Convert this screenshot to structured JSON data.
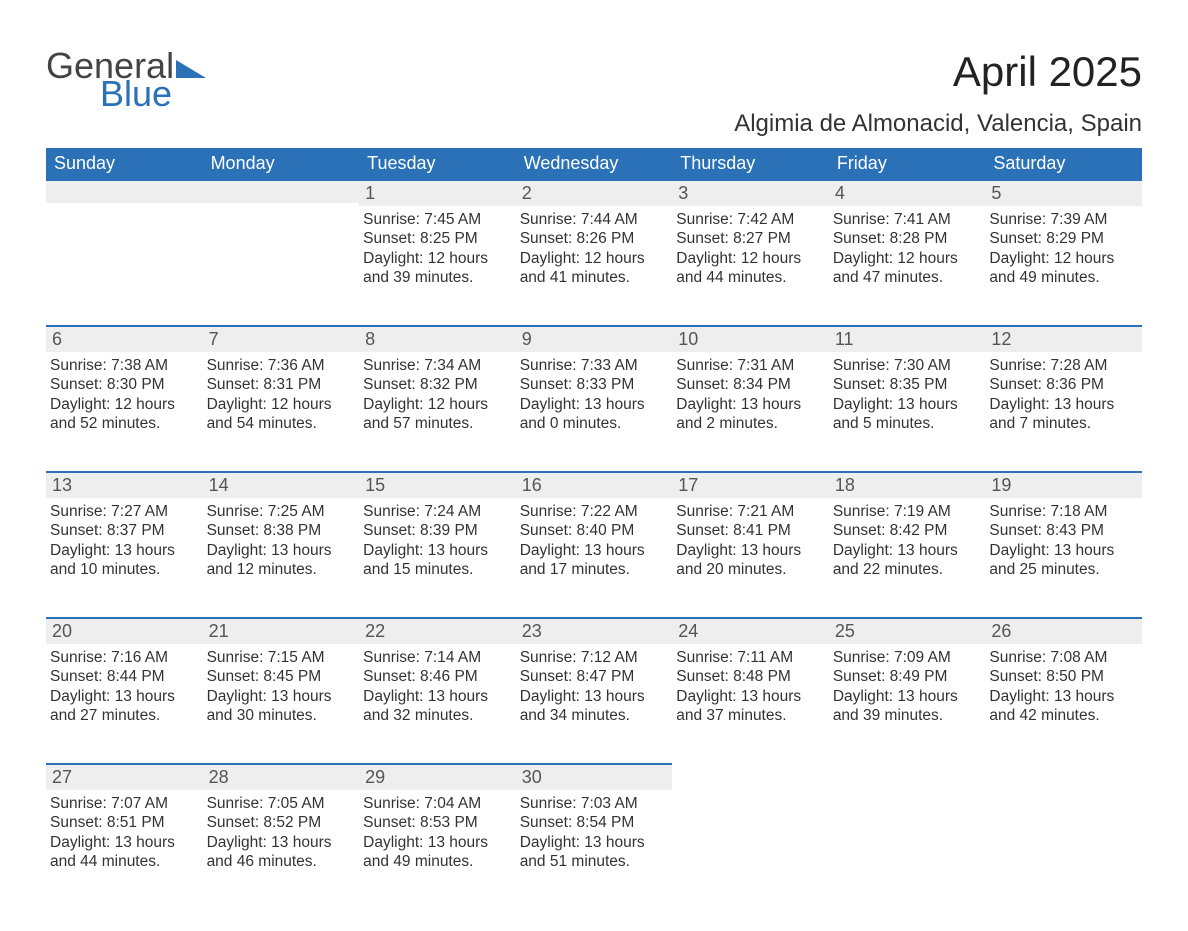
{
  "logo": {
    "line1": "General",
    "line2": "Blue",
    "tri_color": "#2a71b8"
  },
  "header": {
    "title": "April 2025",
    "location": "Algimia de Almonacid, Valencia, Spain"
  },
  "colors": {
    "header_bg": "#2a71b8",
    "header_text": "#ffffff",
    "daynum_bg": "#eeeeee",
    "daynum_border": "#2a71b8",
    "body_text": "#333333",
    "page_bg": "#ffffff"
  },
  "typography": {
    "title_fontsize": 42,
    "location_fontsize": 24,
    "weekday_fontsize": 18,
    "daynum_fontsize": 18,
    "cell_fontsize": 15.5,
    "logo_fontsize": 36
  },
  "weekdays": [
    "Sunday",
    "Monday",
    "Tuesday",
    "Wednesday",
    "Thursday",
    "Friday",
    "Saturday"
  ],
  "weeks": [
    [
      null,
      null,
      {
        "day": "1",
        "sunrise": "Sunrise: 7:45 AM",
        "sunset": "Sunset: 8:25 PM",
        "daylight1": "Daylight: 12 hours",
        "daylight2": "and 39 minutes."
      },
      {
        "day": "2",
        "sunrise": "Sunrise: 7:44 AM",
        "sunset": "Sunset: 8:26 PM",
        "daylight1": "Daylight: 12 hours",
        "daylight2": "and 41 minutes."
      },
      {
        "day": "3",
        "sunrise": "Sunrise: 7:42 AM",
        "sunset": "Sunset: 8:27 PM",
        "daylight1": "Daylight: 12 hours",
        "daylight2": "and 44 minutes."
      },
      {
        "day": "4",
        "sunrise": "Sunrise: 7:41 AM",
        "sunset": "Sunset: 8:28 PM",
        "daylight1": "Daylight: 12 hours",
        "daylight2": "and 47 minutes."
      },
      {
        "day": "5",
        "sunrise": "Sunrise: 7:39 AM",
        "sunset": "Sunset: 8:29 PM",
        "daylight1": "Daylight: 12 hours",
        "daylight2": "and 49 minutes."
      }
    ],
    [
      {
        "day": "6",
        "sunrise": "Sunrise: 7:38 AM",
        "sunset": "Sunset: 8:30 PM",
        "daylight1": "Daylight: 12 hours",
        "daylight2": "and 52 minutes."
      },
      {
        "day": "7",
        "sunrise": "Sunrise: 7:36 AM",
        "sunset": "Sunset: 8:31 PM",
        "daylight1": "Daylight: 12 hours",
        "daylight2": "and 54 minutes."
      },
      {
        "day": "8",
        "sunrise": "Sunrise: 7:34 AM",
        "sunset": "Sunset: 8:32 PM",
        "daylight1": "Daylight: 12 hours",
        "daylight2": "and 57 minutes."
      },
      {
        "day": "9",
        "sunrise": "Sunrise: 7:33 AM",
        "sunset": "Sunset: 8:33 PM",
        "daylight1": "Daylight: 13 hours",
        "daylight2": "and 0 minutes."
      },
      {
        "day": "10",
        "sunrise": "Sunrise: 7:31 AM",
        "sunset": "Sunset: 8:34 PM",
        "daylight1": "Daylight: 13 hours",
        "daylight2": "and 2 minutes."
      },
      {
        "day": "11",
        "sunrise": "Sunrise: 7:30 AM",
        "sunset": "Sunset: 8:35 PM",
        "daylight1": "Daylight: 13 hours",
        "daylight2": "and 5 minutes."
      },
      {
        "day": "12",
        "sunrise": "Sunrise: 7:28 AM",
        "sunset": "Sunset: 8:36 PM",
        "daylight1": "Daylight: 13 hours",
        "daylight2": "and 7 minutes."
      }
    ],
    [
      {
        "day": "13",
        "sunrise": "Sunrise: 7:27 AM",
        "sunset": "Sunset: 8:37 PM",
        "daylight1": "Daylight: 13 hours",
        "daylight2": "and 10 minutes."
      },
      {
        "day": "14",
        "sunrise": "Sunrise: 7:25 AM",
        "sunset": "Sunset: 8:38 PM",
        "daylight1": "Daylight: 13 hours",
        "daylight2": "and 12 minutes."
      },
      {
        "day": "15",
        "sunrise": "Sunrise: 7:24 AM",
        "sunset": "Sunset: 8:39 PM",
        "daylight1": "Daylight: 13 hours",
        "daylight2": "and 15 minutes."
      },
      {
        "day": "16",
        "sunrise": "Sunrise: 7:22 AM",
        "sunset": "Sunset: 8:40 PM",
        "daylight1": "Daylight: 13 hours",
        "daylight2": "and 17 minutes."
      },
      {
        "day": "17",
        "sunrise": "Sunrise: 7:21 AM",
        "sunset": "Sunset: 8:41 PM",
        "daylight1": "Daylight: 13 hours",
        "daylight2": "and 20 minutes."
      },
      {
        "day": "18",
        "sunrise": "Sunrise: 7:19 AM",
        "sunset": "Sunset: 8:42 PM",
        "daylight1": "Daylight: 13 hours",
        "daylight2": "and 22 minutes."
      },
      {
        "day": "19",
        "sunrise": "Sunrise: 7:18 AM",
        "sunset": "Sunset: 8:43 PM",
        "daylight1": "Daylight: 13 hours",
        "daylight2": "and 25 minutes."
      }
    ],
    [
      {
        "day": "20",
        "sunrise": "Sunrise: 7:16 AM",
        "sunset": "Sunset: 8:44 PM",
        "daylight1": "Daylight: 13 hours",
        "daylight2": "and 27 minutes."
      },
      {
        "day": "21",
        "sunrise": "Sunrise: 7:15 AM",
        "sunset": "Sunset: 8:45 PM",
        "daylight1": "Daylight: 13 hours",
        "daylight2": "and 30 minutes."
      },
      {
        "day": "22",
        "sunrise": "Sunrise: 7:14 AM",
        "sunset": "Sunset: 8:46 PM",
        "daylight1": "Daylight: 13 hours",
        "daylight2": "and 32 minutes."
      },
      {
        "day": "23",
        "sunrise": "Sunrise: 7:12 AM",
        "sunset": "Sunset: 8:47 PM",
        "daylight1": "Daylight: 13 hours",
        "daylight2": "and 34 minutes."
      },
      {
        "day": "24",
        "sunrise": "Sunrise: 7:11 AM",
        "sunset": "Sunset: 8:48 PM",
        "daylight1": "Daylight: 13 hours",
        "daylight2": "and 37 minutes."
      },
      {
        "day": "25",
        "sunrise": "Sunrise: 7:09 AM",
        "sunset": "Sunset: 8:49 PM",
        "daylight1": "Daylight: 13 hours",
        "daylight2": "and 39 minutes."
      },
      {
        "day": "26",
        "sunrise": "Sunrise: 7:08 AM",
        "sunset": "Sunset: 8:50 PM",
        "daylight1": "Daylight: 13 hours",
        "daylight2": "and 42 minutes."
      }
    ],
    [
      {
        "day": "27",
        "sunrise": "Sunrise: 7:07 AM",
        "sunset": "Sunset: 8:51 PM",
        "daylight1": "Daylight: 13 hours",
        "daylight2": "and 44 minutes."
      },
      {
        "day": "28",
        "sunrise": "Sunrise: 7:05 AM",
        "sunset": "Sunset: 8:52 PM",
        "daylight1": "Daylight: 13 hours",
        "daylight2": "and 46 minutes."
      },
      {
        "day": "29",
        "sunrise": "Sunrise: 7:04 AM",
        "sunset": "Sunset: 8:53 PM",
        "daylight1": "Daylight: 13 hours",
        "daylight2": "and 49 minutes."
      },
      {
        "day": "30",
        "sunrise": "Sunrise: 7:03 AM",
        "sunset": "Sunset: 8:54 PM",
        "daylight1": "Daylight: 13 hours",
        "daylight2": "and 51 minutes."
      },
      null,
      null,
      null
    ]
  ]
}
